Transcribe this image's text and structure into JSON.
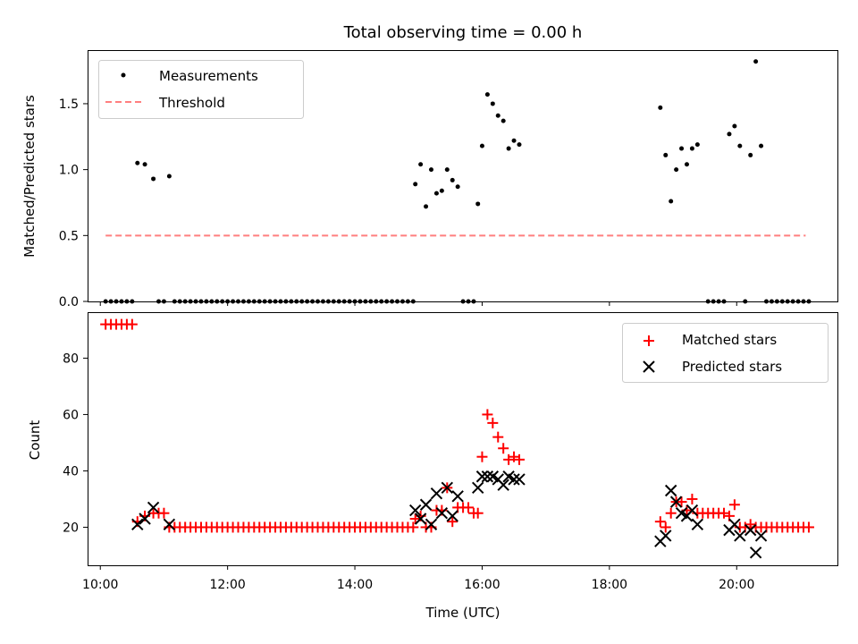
{
  "figure_title": "Total observing time = 0.00 h",
  "colors": {
    "threshold": "#ff7f7f",
    "matched": "#ff0000",
    "predicted": "#000000",
    "measurement": "#000000"
  },
  "chart_data": [
    {
      "type": "scatter",
      "panel": "top",
      "title": "Total observing time = 0.00 h",
      "xlabel": "",
      "ylabel": "Matched/Predicted stars",
      "xlim": [
        "09:48",
        "21:35"
      ],
      "ylim": [
        0,
        1.9
      ],
      "yticks": [
        0.0,
        0.5,
        1.0,
        1.5
      ],
      "ytick_labels": [
        "0.0",
        "0.5",
        "1.0",
        "1.5"
      ],
      "legend_placement": "upper left",
      "legend": [
        "Measurements",
        "Threshold"
      ],
      "threshold": {
        "value": 0.5,
        "x_from": "10:05",
        "x_to": "21:05"
      },
      "series": [
        {
          "name": "Measurements",
          "points": [
            [
              "10:05",
              0
            ],
            [
              "10:10",
              0
            ],
            [
              "10:15",
              0
            ],
            [
              "10:20",
              0
            ],
            [
              "10:25",
              0
            ],
            [
              "10:30",
              0
            ],
            [
              "10:35",
              1.05
            ],
            [
              "10:42",
              1.04
            ],
            [
              "10:50",
              0.93
            ],
            [
              "10:55",
              0
            ],
            [
              "11:00",
              0
            ],
            [
              "11:05",
              0.95
            ],
            [
              "11:10",
              0
            ],
            [
              "11:15",
              0
            ],
            [
              "11:20",
              0
            ],
            [
              "11:25",
              0
            ],
            [
              "11:30",
              0
            ],
            [
              "11:35",
              0
            ],
            [
              "11:40",
              0
            ],
            [
              "11:45",
              0
            ],
            [
              "11:50",
              0
            ],
            [
              "11:55",
              0
            ],
            [
              "12:00",
              0
            ],
            [
              "12:05",
              0
            ],
            [
              "12:10",
              0
            ],
            [
              "12:15",
              0
            ],
            [
              "12:20",
              0
            ],
            [
              "12:25",
              0
            ],
            [
              "12:30",
              0
            ],
            [
              "12:35",
              0
            ],
            [
              "12:40",
              0
            ],
            [
              "12:45",
              0
            ],
            [
              "12:50",
              0
            ],
            [
              "12:55",
              0
            ],
            [
              "13:00",
              0
            ],
            [
              "13:05",
              0
            ],
            [
              "13:10",
              0
            ],
            [
              "13:15",
              0
            ],
            [
              "13:20",
              0
            ],
            [
              "13:25",
              0
            ],
            [
              "13:30",
              0
            ],
            [
              "13:35",
              0
            ],
            [
              "13:40",
              0
            ],
            [
              "13:45",
              0
            ],
            [
              "13:50",
              0
            ],
            [
              "13:55",
              0
            ],
            [
              "14:00",
              0
            ],
            [
              "14:05",
              0
            ],
            [
              "14:10",
              0
            ],
            [
              "14:15",
              0
            ],
            [
              "14:20",
              0
            ],
            [
              "14:25",
              0
            ],
            [
              "14:30",
              0
            ],
            [
              "14:35",
              0
            ],
            [
              "14:40",
              0
            ],
            [
              "14:45",
              0
            ],
            [
              "14:50",
              0
            ],
            [
              "14:55",
              0
            ],
            [
              "14:57",
              0.89
            ],
            [
              "15:02",
              1.04
            ],
            [
              "15:07",
              0.72
            ],
            [
              "15:12",
              1.0
            ],
            [
              "15:17",
              0.82
            ],
            [
              "15:22",
              0.84
            ],
            [
              "15:27",
              1.0
            ],
            [
              "15:32",
              0.92
            ],
            [
              "15:37",
              0.87
            ],
            [
              "15:42",
              0
            ],
            [
              "15:47",
              0
            ],
            [
              "15:52",
              0
            ],
            [
              "15:56",
              0.74
            ],
            [
              "16:00",
              1.18
            ],
            [
              "16:05",
              1.57
            ],
            [
              "16:10",
              1.5
            ],
            [
              "16:15",
              1.41
            ],
            [
              "16:20",
              1.37
            ],
            [
              "16:25",
              1.16
            ],
            [
              "16:30",
              1.22
            ],
            [
              "16:35",
              1.19
            ],
            [
              "18:48",
              1.47
            ],
            [
              "18:53",
              1.11
            ],
            [
              "18:58",
              0.76
            ],
            [
              "19:03",
              1.0
            ],
            [
              "19:08",
              1.16
            ],
            [
              "19:13",
              1.04
            ],
            [
              "19:18",
              1.16
            ],
            [
              "19:23",
              1.19
            ],
            [
              "19:33",
              0
            ],
            [
              "19:38",
              0
            ],
            [
              "19:43",
              0
            ],
            [
              "19:48",
              0
            ],
            [
              "19:53",
              1.27
            ],
            [
              "19:58",
              1.33
            ],
            [
              "20:03",
              1.18
            ],
            [
              "20:08",
              0
            ],
            [
              "20:13",
              1.11
            ],
            [
              "20:18",
              1.82
            ],
            [
              "20:23",
              1.18
            ],
            [
              "20:28",
              0
            ],
            [
              "20:33",
              0
            ],
            [
              "20:38",
              0
            ],
            [
              "20:43",
              0
            ],
            [
              "20:48",
              0
            ],
            [
              "20:53",
              0
            ],
            [
              "20:58",
              0
            ],
            [
              "21:03",
              0
            ],
            [
              "21:08",
              0
            ]
          ]
        }
      ]
    },
    {
      "type": "scatter",
      "panel": "bottom",
      "title": "",
      "xlabel": "Time (UTC)",
      "ylabel": "Count",
      "xlim": [
        "09:48",
        "21:35"
      ],
      "ylim": [
        6.5,
        96
      ],
      "xticks": [
        "10:00",
        "12:00",
        "14:00",
        "16:00",
        "18:00",
        "20:00"
      ],
      "yticks": [
        20,
        40,
        60,
        80
      ],
      "ytick_labels": [
        "20",
        "40",
        "60",
        "80"
      ],
      "legend_placement": "upper right",
      "legend": [
        "Matched stars",
        "Predicted stars"
      ],
      "series": [
        {
          "name": "Matched stars",
          "marker": "+",
          "points": [
            [
              "10:05",
              92
            ],
            [
              "10:10",
              92
            ],
            [
              "10:15",
              92
            ],
            [
              "10:20",
              92
            ],
            [
              "10:25",
              92
            ],
            [
              "10:30",
              92
            ],
            [
              "10:35",
              22
            ],
            [
              "10:42",
              24
            ],
            [
              "10:50",
              25
            ],
            [
              "10:55",
              25
            ],
            [
              "11:00",
              25
            ],
            [
              "11:05",
              20
            ],
            [
              "11:10",
              20
            ],
            [
              "11:15",
              20
            ],
            [
              "11:20",
              20
            ],
            [
              "11:25",
              20
            ],
            [
              "11:30",
              20
            ],
            [
              "11:35",
              20
            ],
            [
              "11:40",
              20
            ],
            [
              "11:45",
              20
            ],
            [
              "11:50",
              20
            ],
            [
              "11:55",
              20
            ],
            [
              "12:00",
              20
            ],
            [
              "12:05",
              20
            ],
            [
              "12:10",
              20
            ],
            [
              "12:15",
              20
            ],
            [
              "12:20",
              20
            ],
            [
              "12:25",
              20
            ],
            [
              "12:30",
              20
            ],
            [
              "12:35",
              20
            ],
            [
              "12:40",
              20
            ],
            [
              "12:45",
              20
            ],
            [
              "12:50",
              20
            ],
            [
              "12:55",
              20
            ],
            [
              "13:00",
              20
            ],
            [
              "13:05",
              20
            ],
            [
              "13:10",
              20
            ],
            [
              "13:15",
              20
            ],
            [
              "13:20",
              20
            ],
            [
              "13:25",
              20
            ],
            [
              "13:30",
              20
            ],
            [
              "13:35",
              20
            ],
            [
              "13:40",
              20
            ],
            [
              "13:45",
              20
            ],
            [
              "13:50",
              20
            ],
            [
              "13:55",
              20
            ],
            [
              "14:00",
              20
            ],
            [
              "14:05",
              20
            ],
            [
              "14:10",
              20
            ],
            [
              "14:15",
              20
            ],
            [
              "14:20",
              20
            ],
            [
              "14:25",
              20
            ],
            [
              "14:30",
              20
            ],
            [
              "14:35",
              20
            ],
            [
              "14:40",
              20
            ],
            [
              "14:45",
              20
            ],
            [
              "14:50",
              20
            ],
            [
              "14:55",
              20
            ],
            [
              "14:57",
              23
            ],
            [
              "15:02",
              24
            ],
            [
              "15:07",
              20
            ],
            [
              "15:12",
              20
            ],
            [
              "15:17",
              26
            ],
            [
              "15:22",
              26
            ],
            [
              "15:27",
              34
            ],
            [
              "15:32",
              22
            ],
            [
              "15:37",
              27
            ],
            [
              "15:42",
              27
            ],
            [
              "15:47",
              27
            ],
            [
              "15:52",
              25
            ],
            [
              "15:56",
              25
            ],
            [
              "16:00",
              45
            ],
            [
              "16:05",
              60
            ],
            [
              "16:10",
              57
            ],
            [
              "16:15",
              52
            ],
            [
              "16:20",
              48
            ],
            [
              "16:25",
              44
            ],
            [
              "16:30",
              45
            ],
            [
              "16:35",
              44
            ],
            [
              "18:48",
              22
            ],
            [
              "18:53",
              20
            ],
            [
              "18:58",
              25
            ],
            [
              "19:03",
              29
            ],
            [
              "19:08",
              29
            ],
            [
              "19:13",
              26
            ],
            [
              "19:18",
              30
            ],
            [
              "19:23",
              25
            ],
            [
              "19:28",
              25
            ],
            [
              "19:33",
              25
            ],
            [
              "19:38",
              25
            ],
            [
              "19:43",
              25
            ],
            [
              "19:48",
              25
            ],
            [
              "19:53",
              24
            ],
            [
              "19:58",
              28
            ],
            [
              "20:03",
              20
            ],
            [
              "20:08",
              20
            ],
            [
              "20:13",
              21
            ],
            [
              "20:18",
              20
            ],
            [
              "20:23",
              20
            ],
            [
              "20:28",
              20
            ],
            [
              "20:33",
              20
            ],
            [
              "20:38",
              20
            ],
            [
              "20:43",
              20
            ],
            [
              "20:48",
              20
            ],
            [
              "20:53",
              20
            ],
            [
              "20:58",
              20
            ],
            [
              "21:03",
              20
            ],
            [
              "21:08",
              20
            ]
          ]
        },
        {
          "name": "Predicted stars",
          "marker": "x",
          "points": [
            [
              "10:35",
              21
            ],
            [
              "10:42",
              23
            ],
            [
              "10:50",
              27
            ],
            [
              "11:05",
              21
            ],
            [
              "14:57",
              26
            ],
            [
              "15:02",
              23
            ],
            [
              "15:07",
              28
            ],
            [
              "15:12",
              21
            ],
            [
              "15:17",
              32
            ],
            [
              "15:22",
              25
            ],
            [
              "15:27",
              34
            ],
            [
              "15:32",
              24
            ],
            [
              "15:37",
              31
            ],
            [
              "15:56",
              34
            ],
            [
              "16:00",
              38
            ],
            [
              "16:05",
              38
            ],
            [
              "16:10",
              38
            ],
            [
              "16:15",
              37
            ],
            [
              "16:20",
              35
            ],
            [
              "16:25",
              38
            ],
            [
              "16:30",
              37
            ],
            [
              "16:35",
              37
            ],
            [
              "18:48",
              15
            ],
            [
              "18:53",
              17
            ],
            [
              "18:58",
              33
            ],
            [
              "19:03",
              29
            ],
            [
              "19:08",
              25
            ],
            [
              "19:13",
              24
            ],
            [
              "19:18",
              26
            ],
            [
              "19:23",
              21
            ],
            [
              "19:53",
              19
            ],
            [
              "19:58",
              21
            ],
            [
              "20:03",
              17
            ],
            [
              "20:13",
              19
            ],
            [
              "20:18",
              11
            ],
            [
              "20:23",
              17
            ]
          ]
        }
      ]
    }
  ]
}
